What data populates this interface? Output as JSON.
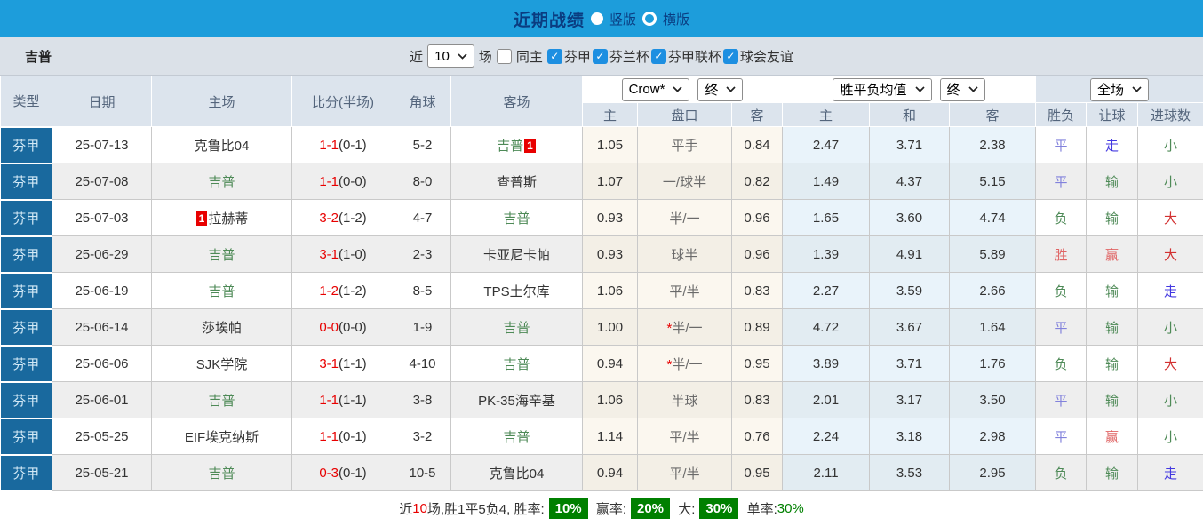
{
  "title_bar": {
    "title": "近期战绩",
    "vertical_label": "竖版",
    "horizontal_label": "横版"
  },
  "filter_bar": {
    "team": "吉普",
    "near_label": "近",
    "match_count": "10",
    "games_label": "场",
    "same_home_label": "同主",
    "leagues": [
      "芬甲",
      "芬兰杯",
      "芬甲联杯",
      "球会友谊"
    ]
  },
  "table": {
    "columns": [
      "类型",
      "日期",
      "主场",
      "比分(半场)",
      "角球",
      "客场"
    ],
    "subcolumns": [
      "主",
      "盘口",
      "客",
      "主",
      "和",
      "客",
      "胜负",
      "让球",
      "进球数"
    ],
    "selects": {
      "odds_source": "Crow*",
      "odds_time": "终",
      "mean_source": "胜平负均值",
      "mean_time": "终",
      "scope": "全场"
    },
    "rows": [
      {
        "league": "芬甲",
        "date": "25-07-13",
        "home": "克鲁比04",
        "home_green": false,
        "home_badge": "",
        "score": "1-1",
        "half": "(0-1)",
        "corners": "5-2",
        "away": "吉普",
        "away_green": true,
        "away_badge": "1",
        "odds_home": "1.05",
        "handicap": "平手",
        "handicap_star": false,
        "odds_away": "0.84",
        "mean_home": "2.47",
        "mean_draw": "3.71",
        "mean_away": "2.38",
        "result": "平",
        "result_class": "draw",
        "handicap_result": "走",
        "handicap_result_class": "push",
        "goals": "小",
        "goals_class": "small"
      },
      {
        "league": "芬甲",
        "date": "25-07-08",
        "home": "吉普",
        "home_green": true,
        "home_badge": "",
        "score": "1-1",
        "half": "(0-0)",
        "corners": "8-0",
        "away": "查普斯",
        "away_green": false,
        "away_badge": "",
        "odds_home": "1.07",
        "handicap": "一/球半",
        "handicap_star": false,
        "odds_away": "0.82",
        "mean_home": "1.49",
        "mean_draw": "4.37",
        "mean_away": "5.15",
        "result": "平",
        "result_class": "draw",
        "handicap_result": "输",
        "handicap_result_class": "lose",
        "goals": "小",
        "goals_class": "small"
      },
      {
        "league": "芬甲",
        "date": "25-07-03",
        "home": "拉赫蒂",
        "home_green": false,
        "home_badge": "1",
        "score": "3-2",
        "half": "(1-2)",
        "corners": "4-7",
        "away": "吉普",
        "away_green": true,
        "away_badge": "",
        "odds_home": "0.93",
        "handicap": "半/一",
        "handicap_star": false,
        "odds_away": "0.96",
        "mean_home": "1.65",
        "mean_draw": "3.60",
        "mean_away": "4.74",
        "result": "负",
        "result_class": "lose",
        "handicap_result": "输",
        "handicap_result_class": "lose",
        "goals": "大",
        "goals_class": "big"
      },
      {
        "league": "芬甲",
        "date": "25-06-29",
        "home": "吉普",
        "home_green": true,
        "home_badge": "",
        "score": "3-1",
        "half": "(1-0)",
        "corners": "2-3",
        "away": "卡亚尼卡帕",
        "away_green": false,
        "away_badge": "",
        "odds_home": "0.93",
        "handicap": "球半",
        "handicap_star": false,
        "odds_away": "0.96",
        "mean_home": "1.39",
        "mean_draw": "4.91",
        "mean_away": "5.89",
        "result": "胜",
        "result_class": "win",
        "handicap_result": "赢",
        "handicap_result_class": "win",
        "goals": "大",
        "goals_class": "big"
      },
      {
        "league": "芬甲",
        "date": "25-06-19",
        "home": "吉普",
        "home_green": true,
        "home_badge": "",
        "score": "1-2",
        "half": "(1-2)",
        "corners": "8-5",
        "away": "TPS土尔库",
        "away_green": false,
        "away_badge": "",
        "odds_home": "1.06",
        "handicap": "平/半",
        "handicap_star": false,
        "odds_away": "0.83",
        "mean_home": "2.27",
        "mean_draw": "3.59",
        "mean_away": "2.66",
        "result": "负",
        "result_class": "lose",
        "handicap_result": "输",
        "handicap_result_class": "lose",
        "goals": "走",
        "goals_class": "push"
      },
      {
        "league": "芬甲",
        "date": "25-06-14",
        "home": "莎埃帕",
        "home_green": false,
        "home_badge": "",
        "score": "0-0",
        "half": "(0-0)",
        "corners": "1-9",
        "away": "吉普",
        "away_green": true,
        "away_badge": "",
        "odds_home": "1.00",
        "handicap": "半/一",
        "handicap_star": true,
        "odds_away": "0.89",
        "mean_home": "4.72",
        "mean_draw": "3.67",
        "mean_away": "1.64",
        "result": "平",
        "result_class": "draw",
        "handicap_result": "输",
        "handicap_result_class": "lose",
        "goals": "小",
        "goals_class": "small"
      },
      {
        "league": "芬甲",
        "date": "25-06-06",
        "home": "SJK学院",
        "home_green": false,
        "home_badge": "",
        "score": "3-1",
        "half": "(1-1)",
        "corners": "4-10",
        "away": "吉普",
        "away_green": true,
        "away_badge": "",
        "odds_home": "0.94",
        "handicap": "半/一",
        "handicap_star": true,
        "odds_away": "0.95",
        "mean_home": "3.89",
        "mean_draw": "3.71",
        "mean_away": "1.76",
        "result": "负",
        "result_class": "lose",
        "handicap_result": "输",
        "handicap_result_class": "lose",
        "goals": "大",
        "goals_class": "big"
      },
      {
        "league": "芬甲",
        "date": "25-06-01",
        "home": "吉普",
        "home_green": true,
        "home_badge": "",
        "score": "1-1",
        "half": "(1-1)",
        "corners": "3-8",
        "away": "PK-35海辛基",
        "away_green": false,
        "away_badge": "",
        "odds_home": "1.06",
        "handicap": "半球",
        "handicap_star": false,
        "odds_away": "0.83",
        "mean_home": "2.01",
        "mean_draw": "3.17",
        "mean_away": "3.50",
        "result": "平",
        "result_class": "draw",
        "handicap_result": "输",
        "handicap_result_class": "lose",
        "goals": "小",
        "goals_class": "small"
      },
      {
        "league": "芬甲",
        "date": "25-05-25",
        "home": "EIF埃克纳斯",
        "home_green": false,
        "home_badge": "",
        "score": "1-1",
        "half": "(0-1)",
        "corners": "3-2",
        "away": "吉普",
        "away_green": true,
        "away_badge": "",
        "odds_home": "1.14",
        "handicap": "平/半",
        "handicap_star": false,
        "odds_away": "0.76",
        "mean_home": "2.24",
        "mean_draw": "3.18",
        "mean_away": "2.98",
        "result": "平",
        "result_class": "draw",
        "handicap_result": "赢",
        "handicap_result_class": "win",
        "goals": "小",
        "goals_class": "small"
      },
      {
        "league": "芬甲",
        "date": "25-05-21",
        "home": "吉普",
        "home_green": true,
        "home_badge": "",
        "score": "0-3",
        "half": "(0-1)",
        "corners": "10-5",
        "away": "克鲁比04",
        "away_green": false,
        "away_badge": "",
        "odds_home": "0.94",
        "handicap": "平/半",
        "handicap_star": false,
        "odds_away": "0.95",
        "mean_home": "2.11",
        "mean_draw": "3.53",
        "mean_away": "2.95",
        "result": "负",
        "result_class": "lose",
        "handicap_result": "输",
        "handicap_result_class": "lose",
        "goals": "走",
        "goals_class": "push"
      }
    ]
  },
  "footer": {
    "seg1": "近",
    "seg2": "10",
    "seg3": "场,胜1平5负4, 胜率:",
    "rate1": "10%",
    "seg4": " 赢率:",
    "rate2": "20%",
    "seg5": " 大:",
    "rate3": "30%",
    "seg6": " 单率:",
    "rate4": "30%"
  },
  "colors": {
    "top_bar": "#1d9ddb",
    "league_cell": "#19699e",
    "score_red": "#e80000",
    "team_green": "#4e8a57",
    "badge_green": "#008000",
    "checkbox_blue": "#1d8fe1"
  }
}
